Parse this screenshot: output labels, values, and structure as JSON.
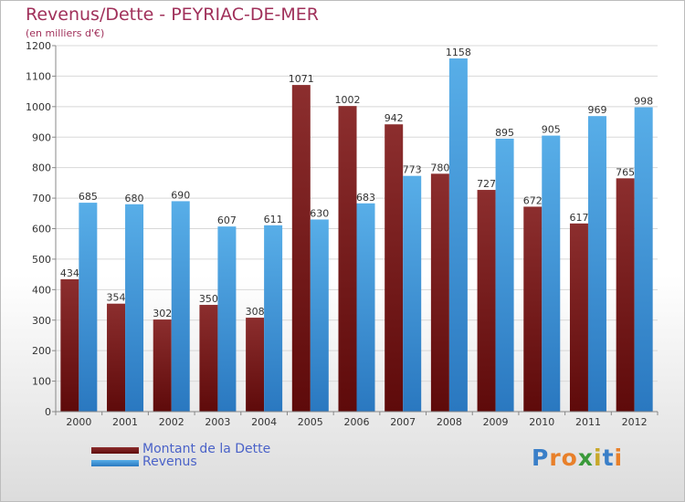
{
  "title": "Revenus/Dette - PEYRIAC-DE-MER",
  "subtitle": "(en milliers d'€)",
  "logo": {
    "text": "Proxiti",
    "letters": [
      {
        "ch": "P",
        "color": "#3a7fc8"
      },
      {
        "ch": "r",
        "color": "#e8802a"
      },
      {
        "ch": "o",
        "color": "#e8802a"
      },
      {
        "ch": "x",
        "color": "#3a9a3a"
      },
      {
        "ch": "i",
        "color": "#c8a82a"
      },
      {
        "ch": "t",
        "color": "#3a7fc8"
      },
      {
        "ch": "i",
        "color": "#e8802a"
      }
    ]
  },
  "colors": {
    "dette": "#7a1a1a",
    "revenus": "#4aa0e0",
    "title": "#a0305a",
    "legend_text": "#4a62c8"
  },
  "chart_data": {
    "type": "bar",
    "title": "Revenus/Dette - PEYRIAC-DE-MER",
    "subtitle": "(en milliers d'€)",
    "xlabel": "",
    "ylabel": "",
    "categories": [
      "2000",
      "2001",
      "2002",
      "2003",
      "2004",
      "2005",
      "2006",
      "2007",
      "2008",
      "2009",
      "2010",
      "2011",
      "2012"
    ],
    "series": [
      {
        "name": "Montant de la Dette",
        "values": [
          434,
          354,
          302,
          350,
          308,
          1071,
          1002,
          942,
          780,
          727,
          672,
          617,
          765
        ]
      },
      {
        "name": "Revenus",
        "values": [
          685,
          680,
          690,
          607,
          611,
          630,
          683,
          773,
          1158,
          895,
          905,
          969,
          998
        ]
      }
    ],
    "ylim": [
      0,
      1200
    ],
    "yticks": [
      0,
      100,
      200,
      300,
      400,
      500,
      600,
      700,
      800,
      900,
      1000,
      1100,
      1200
    ],
    "grid": true,
    "legend": "bottom-left"
  }
}
